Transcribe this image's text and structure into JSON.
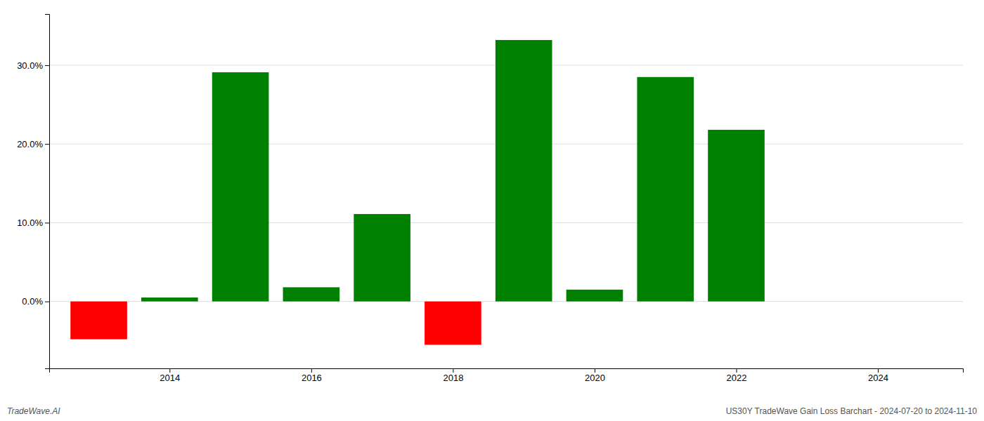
{
  "chart_data": {
    "type": "bar",
    "x": [
      2013,
      2014,
      2015,
      2016,
      2017,
      2018,
      2019,
      2020,
      2021,
      2022,
      2023
    ],
    "values": [
      -0.048,
      0.005,
      0.291,
      0.018,
      0.111,
      -0.055,
      0.332,
      0.015,
      0.285,
      0.218,
      0.0
    ],
    "colors": [
      "#ff0000",
      "#008000",
      "#008000",
      "#008000",
      "#008000",
      "#ff0000",
      "#008000",
      "#008000",
      "#008000",
      "#008000",
      "#008000"
    ],
    "xlim": [
      2012.3,
      2025.2
    ],
    "xticks": [
      2014,
      2016,
      2018,
      2020,
      2022,
      2024
    ],
    "ylim": [
      -0.085,
      0.365
    ],
    "yticks": [
      {
        "value": 0.0,
        "label": "0.0%"
      },
      {
        "value": 0.1,
        "label": "10.0%"
      },
      {
        "value": 0.2,
        "label": "20.0%"
      },
      {
        "value": 0.3,
        "label": "30.0%"
      }
    ],
    "grid": true,
    "annotations": [
      "TradeWave.AI",
      "US30Y TradeWave Gain Loss Barchart - 2024-07-20 to 2024-11-10"
    ]
  }
}
